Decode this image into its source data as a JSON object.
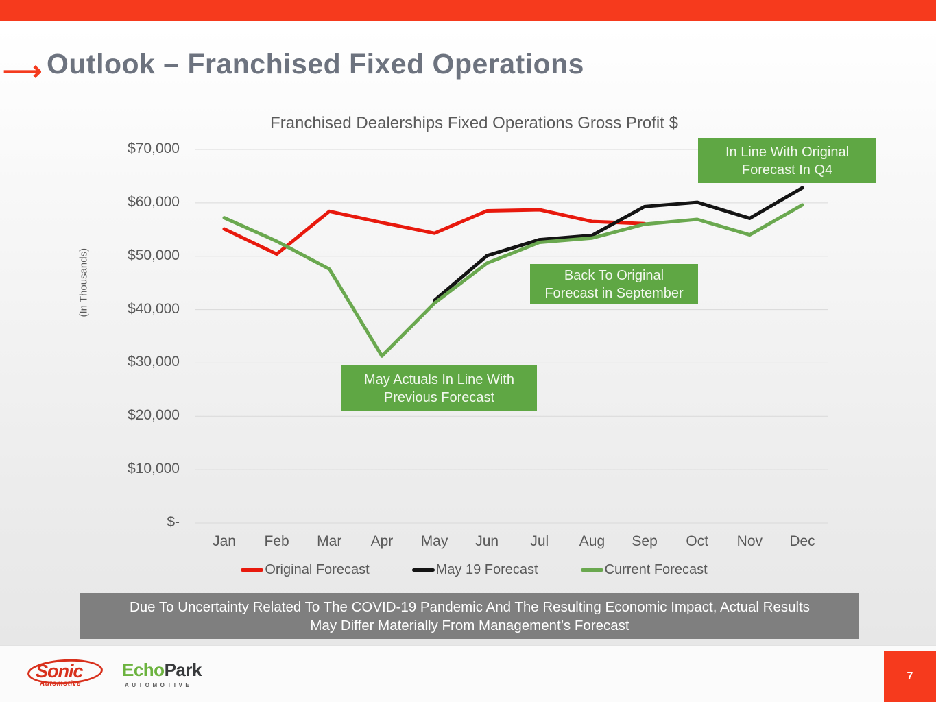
{
  "slide": {
    "title": "Outlook – Franchised Fixed Operations",
    "title_arrow_icon": "⟶",
    "page_number": "7",
    "accent_color": "#f63a1d",
    "callout_color": "#5fa744"
  },
  "chart_data": {
    "type": "line",
    "title": "Franchised Dealerships Fixed Operations Gross Profit $",
    "ylabel": "(In Thousands)",
    "xlabel": "",
    "grid": true,
    "legend_position": "bottom",
    "ylim": [
      0,
      70000
    ],
    "categories": [
      "Jan",
      "Feb",
      "Mar",
      "Apr",
      "May",
      "Jun",
      "Jul",
      "Aug",
      "Sep",
      "Oct",
      "Nov",
      "Dec"
    ],
    "y_ticks": [
      "$70,000",
      "$60,000",
      "$50,000",
      "$40,000",
      "$30,000",
      "$20,000",
      "$10,000",
      "$-"
    ],
    "y_tick_values": [
      70000,
      60000,
      50000,
      40000,
      30000,
      20000,
      10000,
      0
    ],
    "series": [
      {
        "name": "Original Forecast",
        "color": "#e8190d",
        "values": [
          55100,
          50400,
          58400,
          56300,
          54300,
          58500,
          58700,
          56500,
          56100,
          null,
          null,
          null
        ]
      },
      {
        "name": "May 19 Forecast",
        "color": "#141414",
        "values": [
          null,
          null,
          null,
          null,
          41700,
          50100,
          53100,
          53900,
          59300,
          60100,
          57100,
          62800
        ]
      },
      {
        "name": "Current Forecast",
        "color": "#6aa84f",
        "values": [
          57200,
          52800,
          47600,
          31300,
          41200,
          48700,
          52600,
          53400,
          56000,
          56900,
          54000,
          59600
        ]
      }
    ],
    "annotations": [
      {
        "line1": "May Actuals In Line With",
        "line2": "Previous Forecast"
      },
      {
        "line1": "Back To Original",
        "line2": "Forecast in September"
      },
      {
        "line1": "In Line With Original",
        "line2": "Forecast In Q4"
      }
    ]
  },
  "disclaimer": {
    "line1": "Due To Uncertainty Related To The COVID-19 Pandemic And The Resulting Economic Impact, Actual Results",
    "line2": "May Differ Materially From Management’s Forecast"
  },
  "footer": {
    "sonic_name": "Sonic",
    "sonic_sub": "Automotive",
    "echo_green": "Echo",
    "echo_dark": "Park",
    "echo_sub": "AUTOMOTIVE"
  }
}
